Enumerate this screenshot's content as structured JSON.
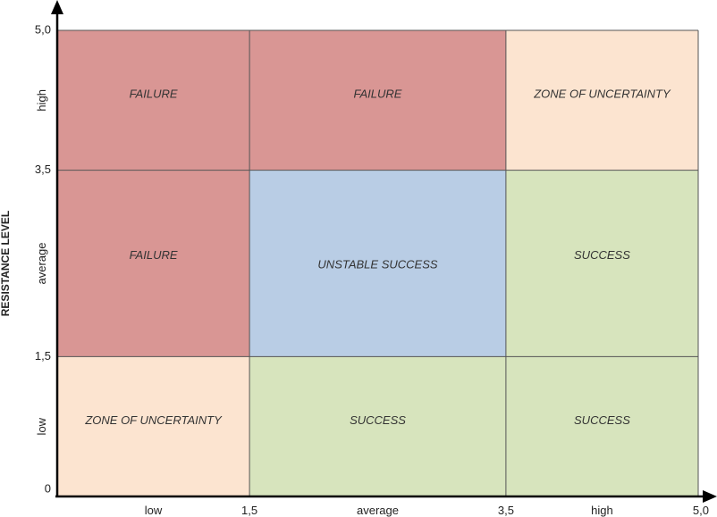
{
  "chart_data": {
    "type": "heatmap",
    "title": "",
    "xlabel": "",
    "ylabel": "RESISTANCE LEVEL",
    "xlim": [
      0,
      5
    ],
    "ylim": [
      0,
      5
    ],
    "x_boundaries": [
      0,
      1.5,
      3.5,
      5
    ],
    "y_boundaries": [
      0,
      1.5,
      3.5,
      5
    ],
    "x_ticks": [
      {
        "value": 1.5,
        "label": "1,5"
      },
      {
        "value": 3.5,
        "label": "3,5"
      },
      {
        "value": 5,
        "label": "5,0"
      }
    ],
    "y_ticks": [
      {
        "value": 0,
        "label": "0"
      },
      {
        "value": 1.5,
        "label": "1,5"
      },
      {
        "value": 3.5,
        "label": "3,5"
      },
      {
        "value": 5,
        "label": "5,0"
      }
    ],
    "x_bands": [
      "low",
      "average",
      "high"
    ],
    "y_bands": [
      "low",
      "average",
      "high"
    ],
    "cells": [
      {
        "row": 2,
        "col": 0,
        "label": "FAILURE",
        "color": "#d99694"
      },
      {
        "row": 2,
        "col": 1,
        "label": "FAILURE",
        "color": "#d99694"
      },
      {
        "row": 2,
        "col": 2,
        "label": "ZONE OF UNCERTAINTY",
        "color": "#fce4d0"
      },
      {
        "row": 1,
        "col": 0,
        "label": "FAILURE",
        "color": "#d99694"
      },
      {
        "row": 1,
        "col": 1,
        "label": "UNSTABLE SUCCESS",
        "color": "#b9cde5"
      },
      {
        "row": 1,
        "col": 2,
        "label": "SUCCESS",
        "color": "#d7e4bd"
      },
      {
        "row": 0,
        "col": 0,
        "label": "ZONE OF UNCERTAINTY",
        "color": "#fce4d0"
      },
      {
        "row": 0,
        "col": 1,
        "label": "SUCCESS",
        "color": "#d7e4bd"
      },
      {
        "row": 0,
        "col": 2,
        "label": "SUCCESS",
        "color": "#d7e4bd"
      }
    ],
    "grid": true,
    "legend": "none"
  }
}
